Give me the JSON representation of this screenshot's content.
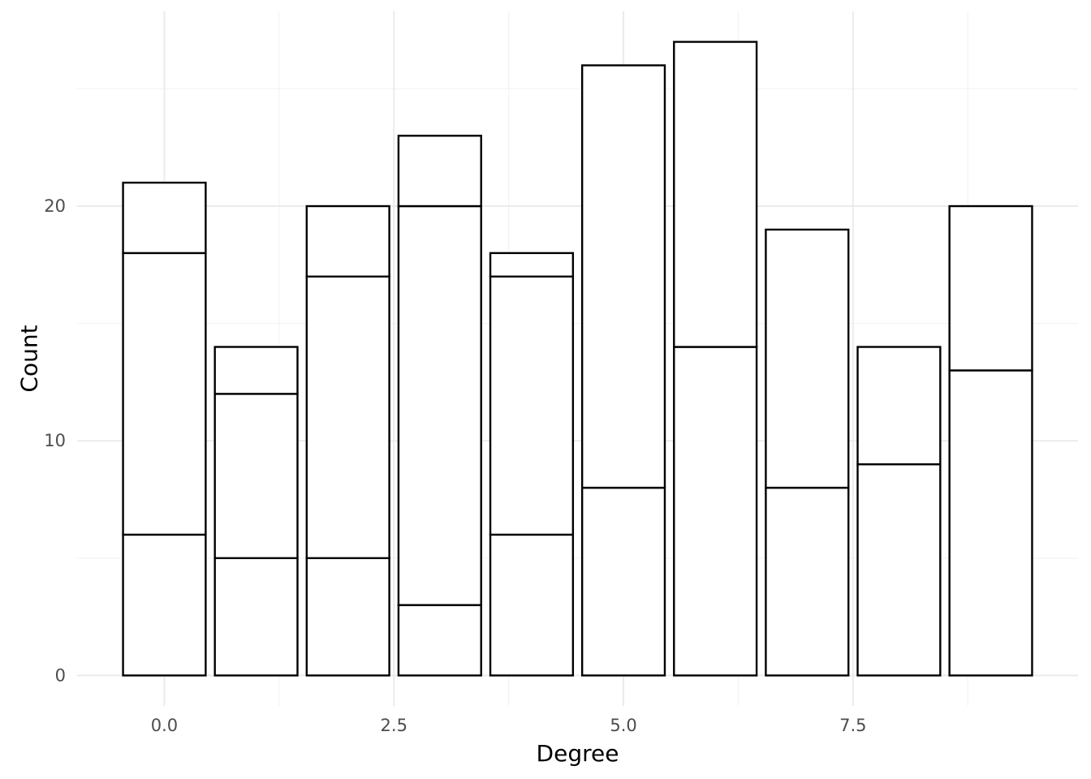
{
  "chart_data": {
    "type": "bar",
    "stacked": true,
    "xlabel": "Degree",
    "ylabel": "Count",
    "xlim": [
      -0.95,
      9.95
    ],
    "ylim": [
      -1.3,
      28.3
    ],
    "x_ticks": [
      {
        "value": 0,
        "label": "0.0"
      },
      {
        "value": 2.5,
        "label": "2.5"
      },
      {
        "value": 5,
        "label": "5.0"
      },
      {
        "value": 7.5,
        "label": "7.5"
      }
    ],
    "y_ticks": [
      {
        "value": 0,
        "label": "0"
      },
      {
        "value": 10,
        "label": "10"
      },
      {
        "value": 20,
        "label": "20"
      }
    ],
    "grid": true,
    "bar_width": 0.9,
    "bars": [
      {
        "x": 0,
        "cumulative_boundaries": [
          6,
          18,
          21
        ]
      },
      {
        "x": 1,
        "cumulative_boundaries": [
          5,
          12,
          14
        ]
      },
      {
        "x": 2,
        "cumulative_boundaries": [
          5,
          17,
          20
        ]
      },
      {
        "x": 3,
        "cumulative_boundaries": [
          3,
          20,
          23
        ]
      },
      {
        "x": 4,
        "cumulative_boundaries": [
          6,
          17,
          18
        ]
      },
      {
        "x": 5,
        "cumulative_boundaries": [
          8,
          26
        ]
      },
      {
        "x": 6,
        "cumulative_boundaries": [
          14,
          27
        ]
      },
      {
        "x": 7,
        "cumulative_boundaries": [
          8,
          19
        ]
      },
      {
        "x": 8,
        "cumulative_boundaries": [
          9,
          14
        ]
      },
      {
        "x": 9,
        "cumulative_boundaries": [
          13,
          20
        ]
      }
    ]
  }
}
